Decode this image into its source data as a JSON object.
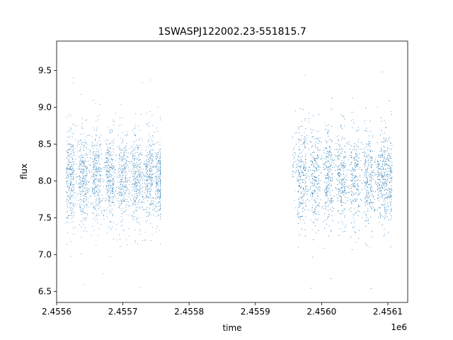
{
  "chart_data": {
    "type": "scatter",
    "title": "1SWASPJ122002.23-551815.7",
    "xlabel": "time",
    "ylabel": "flux",
    "x_offset_label": "1e6",
    "xlim": [
      2.4556,
      2.45613
    ],
    "ylim": [
      6.35,
      9.9
    ],
    "x_ticks": [
      2.4556,
      2.4557,
      2.4558,
      2.4559,
      2.456,
      2.4561
    ],
    "x_tick_labels": [
      "2.4556",
      "2.4557",
      "2.4558",
      "2.4559",
      "2.4560",
      "2.4561"
    ],
    "y_ticks": [
      6.5,
      7.0,
      7.5,
      8.0,
      8.5,
      9.0,
      9.5
    ],
    "y_tick_labels": [
      "6.5",
      "7.0",
      "7.5",
      "8.0",
      "8.5",
      "9.0",
      "9.5"
    ],
    "grid": false,
    "marker_color": "#1f77b4",
    "series": [
      {
        "segments": [
          {
            "x_range": [
              2.455614,
              2.455756
            ],
            "points": 2600,
            "mean": 8.05,
            "std": 0.3,
            "min": 6.55,
            "max": 9.7
          },
          {
            "x_range": [
              2.455955,
              2.456106
            ],
            "points": 3200,
            "mean": 8.07,
            "std": 0.32,
            "min": 6.5,
            "max": 9.72
          }
        ],
        "clusters_x": [
          2.45562,
          2.45564,
          2.45566,
          2.45568,
          2.4557,
          2.45572,
          2.45574,
          2.455755,
          2.45597,
          2.45599,
          2.45601,
          2.45603,
          2.45605,
          2.45607,
          2.45609,
          2.4561
        ]
      }
    ]
  }
}
